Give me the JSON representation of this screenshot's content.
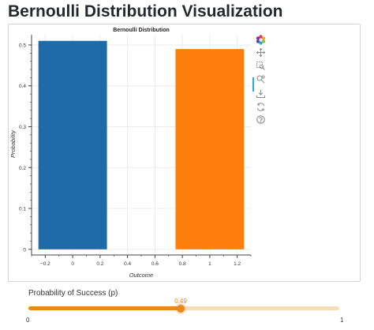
{
  "page": {
    "title": "Bernoulli Distribution Visualization"
  },
  "chart_data": {
    "type": "bar",
    "title": "Bernoulli Distribution",
    "xlabel": "Outcome",
    "ylabel": "Probability",
    "categories": [
      0,
      1
    ],
    "values": [
      0.51,
      0.49
    ],
    "bar_width": 0.5,
    "colors": [
      "#1f6aa8",
      "#ff7f0e"
    ],
    "xlim": [
      -0.3,
      1.3
    ],
    "ylim": [
      -0.01,
      0.525
    ],
    "x_ticks": [
      -0.2,
      0,
      0.2,
      0.4,
      0.6,
      0.8,
      1,
      1.2
    ],
    "x_tick_labels": [
      "−0.2",
      "0",
      "0.2",
      "0.4",
      "0.6",
      "0.8",
      "1",
      "1.2"
    ],
    "y_ticks": [
      0,
      0.1,
      0.2,
      0.3,
      0.4,
      0.5
    ],
    "y_tick_labels": [
      "0",
      "0.1",
      "0.2",
      "0.3",
      "0.4",
      "0.5"
    ],
    "grid": true
  },
  "toolbar": {
    "tools": [
      {
        "icon": "bokeh-logo-icon"
      },
      {
        "icon": "pan-icon"
      },
      {
        "icon": "box-zoom-icon"
      },
      {
        "icon": "wheel-zoom-icon"
      },
      {
        "icon": "save-icon"
      },
      {
        "icon": "reset-icon"
      },
      {
        "icon": "help-icon"
      }
    ]
  },
  "slider": {
    "label": "Probability of Success (p)",
    "value": 0.49,
    "value_text": "0.49",
    "min": 0,
    "max": 1,
    "min_label": "0",
    "max_label": "1",
    "accent": "#e7891f"
  }
}
